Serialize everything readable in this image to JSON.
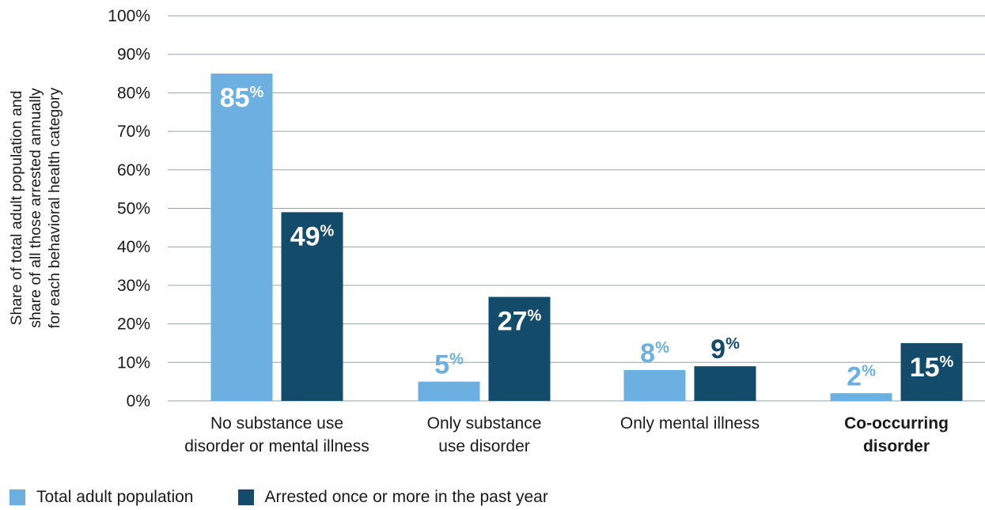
{
  "colors": {
    "series1": "#6bb0e0",
    "series2": "#134b6b",
    "grid": "#9aa0a6"
  },
  "chart_data": {
    "type": "bar",
    "ylabel_lines": [
      "Share of total adult population and",
      "share of all those arrested annually",
      "for each behavioral health category"
    ],
    "ylim": [
      0,
      100
    ],
    "yticks": [
      "0%",
      "10%",
      "20%",
      "30%",
      "40%",
      "50%",
      "60%",
      "70%",
      "80%",
      "90%",
      "100%"
    ],
    "grid": true,
    "legend_position": "bottom-left",
    "categories": [
      {
        "lines": [
          "No substance use",
          "disorder or mental illness"
        ],
        "bold": false
      },
      {
        "lines": [
          "Only substance",
          "use disorder"
        ],
        "bold": false
      },
      {
        "lines": [
          "Only mental illness"
        ],
        "bold": false
      },
      {
        "lines": [
          "Co-occurring",
          "disorder"
        ],
        "bold": true
      }
    ],
    "series": [
      {
        "name": "Total adult population",
        "values": [
          85,
          5,
          8,
          2
        ],
        "labels": [
          "85",
          "5",
          "8",
          "2"
        ]
      },
      {
        "name": "Arrested once or more in the past year",
        "values": [
          49,
          27,
          9,
          15
        ],
        "labels": [
          "49",
          "27",
          "9",
          "15"
        ]
      }
    ],
    "label_suffix": "%"
  }
}
